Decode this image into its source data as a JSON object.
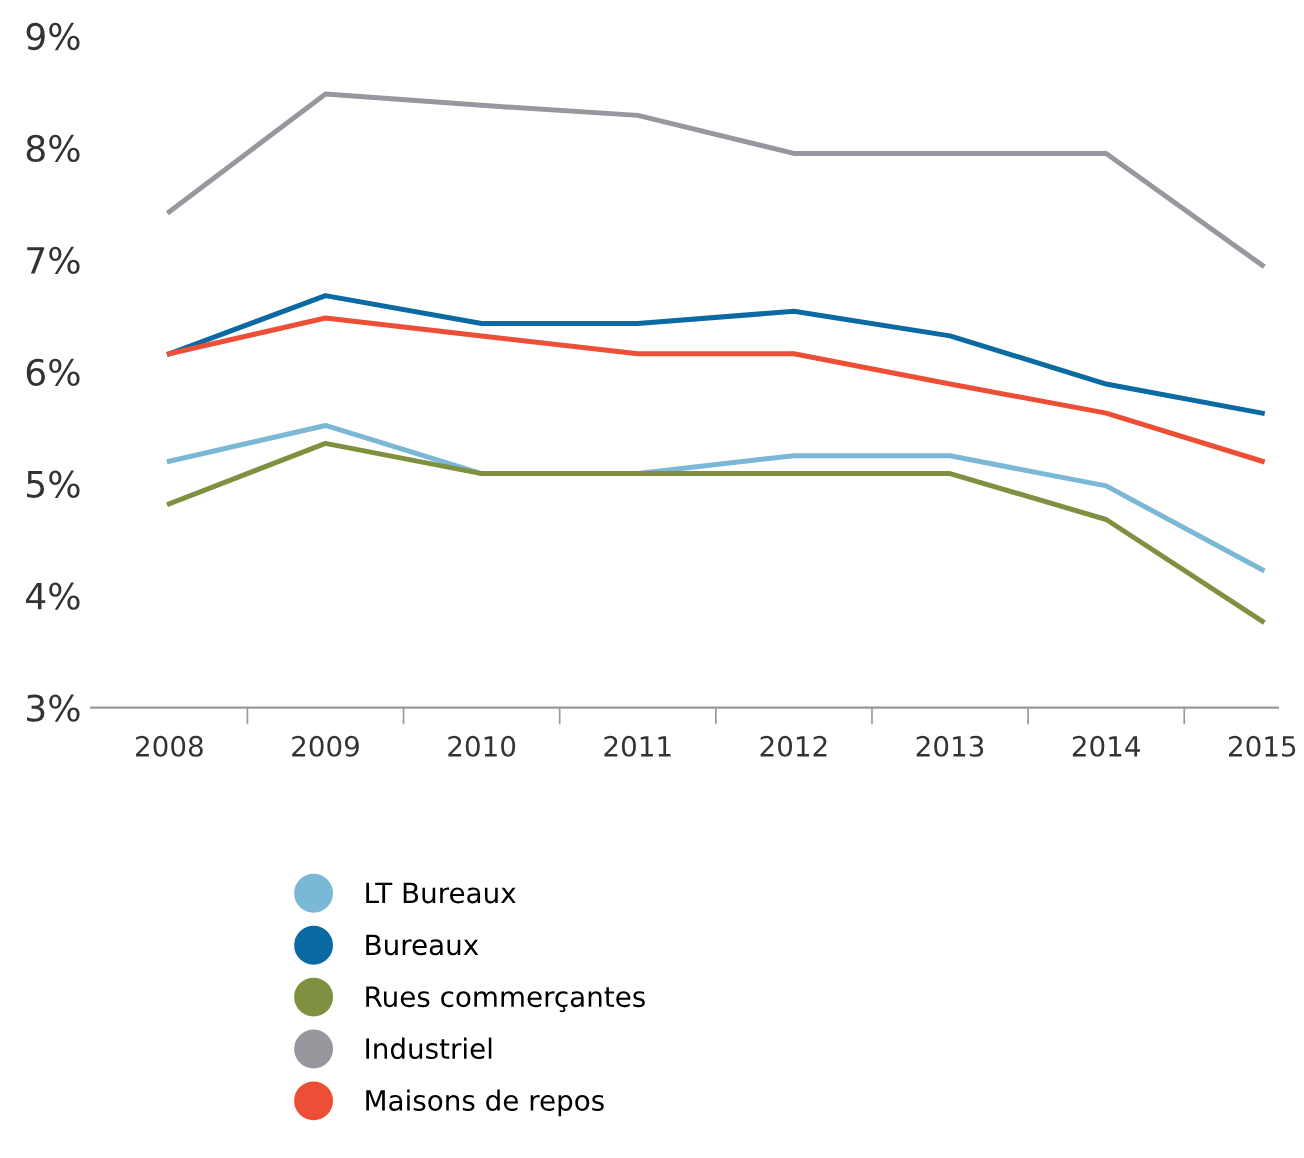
{
  "chart_data": {
    "type": "line",
    "categories": [
      "2008",
      "2009",
      "2010",
      "2011",
      "2012",
      "2013",
      "2014",
      "2015"
    ],
    "series": [
      {
        "name": "LT Bureaux",
        "color": "#7ab8d6",
        "values": [
          5.2,
          5.52,
          5.09,
          5.09,
          5.25,
          5.25,
          4.98,
          4.23
        ]
      },
      {
        "name": "Bureaux",
        "color": "#0a6aa1",
        "values": [
          6.16,
          6.68,
          6.43,
          6.43,
          6.54,
          6.32,
          5.89,
          5.63
        ]
      },
      {
        "name": "Rues commerçantes",
        "color": "#7f9140",
        "values": [
          4.82,
          5.36,
          5.09,
          5.09,
          5.09,
          5.09,
          4.68,
          3.77
        ]
      },
      {
        "name": "Industriel",
        "color": "#99979d",
        "values": [
          7.43,
          8.48,
          8.38,
          8.29,
          7.95,
          7.95,
          7.95,
          6.95
        ]
      },
      {
        "name": "Maisons de repos",
        "color": "#ec4f35",
        "values": [
          6.16,
          6.48,
          6.32,
          6.16,
          6.16,
          5.89,
          5.63,
          5.2
        ]
      }
    ],
    "ylim": [
      3,
      9
    ],
    "yticks": [
      {
        "value": 3,
        "label": "3%"
      },
      {
        "value": 4,
        "label": "4%"
      },
      {
        "value": 5,
        "label": "5%"
      },
      {
        "value": 6,
        "label": "6%"
      },
      {
        "value": 7,
        "label": "7%"
      },
      {
        "value": 8,
        "label": "8%"
      },
      {
        "value": 9,
        "label": "9%"
      }
    ],
    "grid": false,
    "legend": "bottom",
    "marker": "none",
    "line_style": "solid"
  }
}
